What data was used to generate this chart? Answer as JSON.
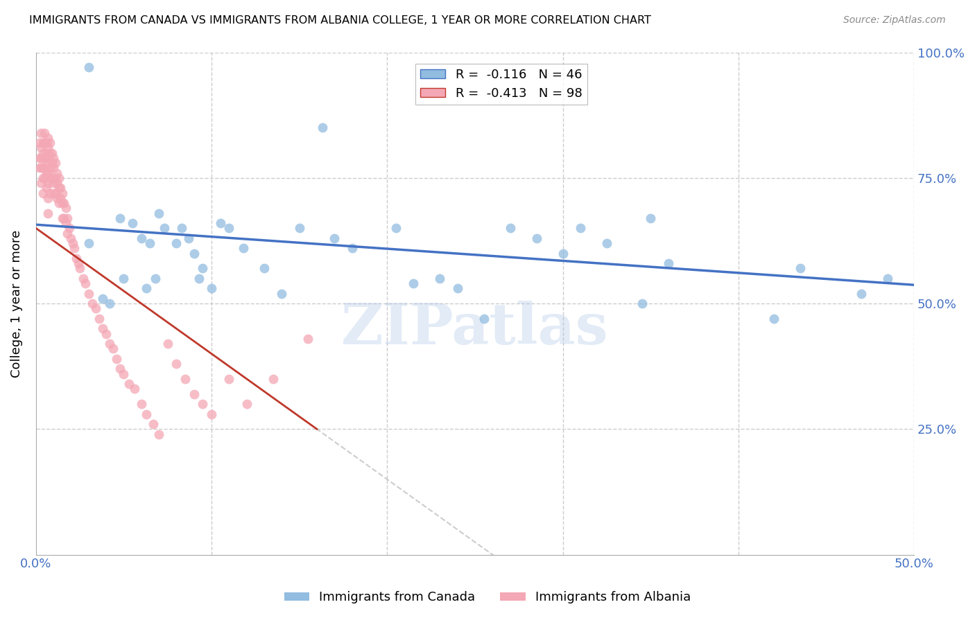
{
  "title": "IMMIGRANTS FROM CANADA VS IMMIGRANTS FROM ALBANIA COLLEGE, 1 YEAR OR MORE CORRELATION CHART",
  "source": "Source: ZipAtlas.com",
  "ylabel": "College, 1 year or more",
  "x_min": 0.0,
  "x_max": 0.5,
  "y_min": 0.0,
  "y_max": 1.0,
  "canada_R": -0.116,
  "canada_N": 46,
  "albania_R": -0.413,
  "albania_N": 98,
  "canada_color": "#92bce0",
  "albania_color": "#f4a7b5",
  "canada_line_color": "#4472c4",
  "albania_line_color": "#c0392b",
  "albania_line_dash": "#cccccc",
  "watermark": "ZIPatlas",
  "canada_x": [
    0.03,
    0.03,
    0.038,
    0.042,
    0.048,
    0.05,
    0.055,
    0.06,
    0.063,
    0.065,
    0.068,
    0.07,
    0.073,
    0.08,
    0.083,
    0.087,
    0.09,
    0.093,
    0.095,
    0.1,
    0.105,
    0.11,
    0.118,
    0.13,
    0.14,
    0.15,
    0.163,
    0.17,
    0.18,
    0.205,
    0.215,
    0.23,
    0.24,
    0.255,
    0.27,
    0.285,
    0.3,
    0.31,
    0.325,
    0.345,
    0.35,
    0.36,
    0.42,
    0.435,
    0.47,
    0.485
  ],
  "canada_y": [
    0.97,
    0.62,
    0.51,
    0.5,
    0.67,
    0.55,
    0.66,
    0.63,
    0.53,
    0.62,
    0.55,
    0.68,
    0.65,
    0.62,
    0.65,
    0.63,
    0.6,
    0.55,
    0.57,
    0.53,
    0.66,
    0.65,
    0.61,
    0.57,
    0.52,
    0.65,
    0.85,
    0.63,
    0.61,
    0.65,
    0.54,
    0.55,
    0.53,
    0.47,
    0.65,
    0.63,
    0.6,
    0.65,
    0.62,
    0.5,
    0.67,
    0.58,
    0.47,
    0.57,
    0.52,
    0.55
  ],
  "albania_x": [
    0.002,
    0.002,
    0.002,
    0.003,
    0.003,
    0.003,
    0.003,
    0.003,
    0.004,
    0.004,
    0.004,
    0.004,
    0.004,
    0.005,
    0.005,
    0.005,
    0.005,
    0.005,
    0.006,
    0.006,
    0.006,
    0.006,
    0.006,
    0.007,
    0.007,
    0.007,
    0.007,
    0.007,
    0.007,
    0.007,
    0.008,
    0.008,
    0.008,
    0.008,
    0.008,
    0.009,
    0.009,
    0.009,
    0.01,
    0.01,
    0.01,
    0.01,
    0.011,
    0.011,
    0.011,
    0.012,
    0.012,
    0.012,
    0.013,
    0.013,
    0.013,
    0.014,
    0.014,
    0.015,
    0.015,
    0.015,
    0.016,
    0.016,
    0.017,
    0.017,
    0.018,
    0.018,
    0.019,
    0.02,
    0.021,
    0.022,
    0.023,
    0.024,
    0.025,
    0.027,
    0.028,
    0.03,
    0.032,
    0.034,
    0.036,
    0.038,
    0.04,
    0.042,
    0.044,
    0.046,
    0.048,
    0.05,
    0.053,
    0.056,
    0.06,
    0.063,
    0.067,
    0.07,
    0.075,
    0.08,
    0.085,
    0.09,
    0.095,
    0.1,
    0.11,
    0.12,
    0.135,
    0.155
  ],
  "albania_y": [
    0.82,
    0.79,
    0.77,
    0.84,
    0.81,
    0.79,
    0.77,
    0.74,
    0.82,
    0.8,
    0.77,
    0.75,
    0.72,
    0.84,
    0.82,
    0.79,
    0.77,
    0.75,
    0.82,
    0.8,
    0.78,
    0.76,
    0.73,
    0.83,
    0.81,
    0.79,
    0.76,
    0.74,
    0.71,
    0.68,
    0.82,
    0.8,
    0.77,
    0.75,
    0.72,
    0.8,
    0.78,
    0.75,
    0.79,
    0.77,
    0.74,
    0.72,
    0.78,
    0.75,
    0.72,
    0.76,
    0.74,
    0.71,
    0.75,
    0.73,
    0.7,
    0.73,
    0.71,
    0.72,
    0.7,
    0.67,
    0.7,
    0.67,
    0.69,
    0.66,
    0.67,
    0.64,
    0.65,
    0.63,
    0.62,
    0.61,
    0.59,
    0.58,
    0.57,
    0.55,
    0.54,
    0.52,
    0.5,
    0.49,
    0.47,
    0.45,
    0.44,
    0.42,
    0.41,
    0.39,
    0.37,
    0.36,
    0.34,
    0.33,
    0.3,
    0.28,
    0.26,
    0.24,
    0.42,
    0.38,
    0.35,
    0.32,
    0.3,
    0.28,
    0.35,
    0.3,
    0.35,
    0.43
  ]
}
